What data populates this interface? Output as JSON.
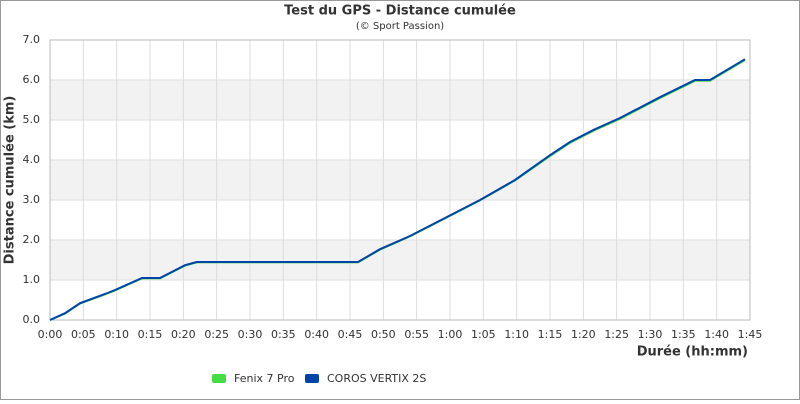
{
  "chart_data": {
    "type": "line",
    "title": "Test du GPS - Distance cumulée",
    "subtitle": "(© Sport Passion)",
    "x_label": "Durée (hh:mm)",
    "y_label": "Distance cumulée (km)",
    "x": [
      0,
      2.25,
      4.5,
      8.25,
      9.75,
      13.8,
      16.5,
      20.25,
      22,
      46.2,
      49.5,
      54,
      59.25,
      64.5,
      69.75,
      75,
      78,
      81.75,
      85.5,
      91.5,
      96.75,
      99,
      104.25
    ],
    "series": [
      {
        "name": "Fenix 7 Pro",
        "color": "#44dd44",
        "values": [
          0,
          0.16,
          0.41,
          0.64,
          0.74,
          1.04,
          1.04,
          1.36,
          1.44,
          1.44,
          1.76,
          2.09,
          2.54,
          2.99,
          3.49,
          4.1,
          4.43,
          4.75,
          5.03,
          5.55,
          5.98,
          5.98,
          6.5
        ]
      },
      {
        "name": "COROS VERTIX 2S",
        "color": "#0044aa",
        "values": [
          0,
          0.17,
          0.42,
          0.65,
          0.75,
          1.05,
          1.05,
          1.37,
          1.45,
          1.45,
          1.77,
          2.1,
          2.55,
          3.0,
          3.5,
          4.12,
          4.45,
          4.77,
          5.05,
          5.57,
          6.0,
          6.0,
          6.52
        ]
      }
    ],
    "xlim": [
      0,
      105
    ],
    "xticks": [
      {
        "value": 0,
        "label": "0:00"
      },
      {
        "value": 5,
        "label": "0:05"
      },
      {
        "value": 10,
        "label": "0:10"
      },
      {
        "value": 15,
        "label": "0:15"
      },
      {
        "value": 20,
        "label": "0:20"
      },
      {
        "value": 25,
        "label": "0:25"
      },
      {
        "value": 30,
        "label": "0:30"
      },
      {
        "value": 35,
        "label": "0:35"
      },
      {
        "value": 40,
        "label": "0:40"
      },
      {
        "value": 45,
        "label": "0:45"
      },
      {
        "value": 50,
        "label": "0:50"
      },
      {
        "value": 55,
        "label": "0:55"
      },
      {
        "value": 60,
        "label": "1:00"
      },
      {
        "value": 65,
        "label": "1:05"
      },
      {
        "value": 70,
        "label": "1:10"
      },
      {
        "value": 75,
        "label": "1:15"
      },
      {
        "value": 80,
        "label": "1:20"
      },
      {
        "value": 85,
        "label": "1:25"
      },
      {
        "value": 90,
        "label": "1:30"
      },
      {
        "value": 95,
        "label": "1:35"
      },
      {
        "value": 100,
        "label": "1:40"
      },
      {
        "value": 105,
        "label": "1:45"
      }
    ],
    "ylim": [
      0,
      7
    ],
    "yticks": [
      {
        "value": 0,
        "label": "0.0"
      },
      {
        "value": 1,
        "label": "1.0"
      },
      {
        "value": 2,
        "label": "2.0"
      },
      {
        "value": 3,
        "label": "3.0"
      },
      {
        "value": 4,
        "label": "4.0"
      },
      {
        "value": 5,
        "label": "5.0"
      },
      {
        "value": 6,
        "label": "6.0"
      },
      {
        "value": 7,
        "label": "7.0"
      }
    ],
    "grid": true,
    "legend": "bottom"
  }
}
